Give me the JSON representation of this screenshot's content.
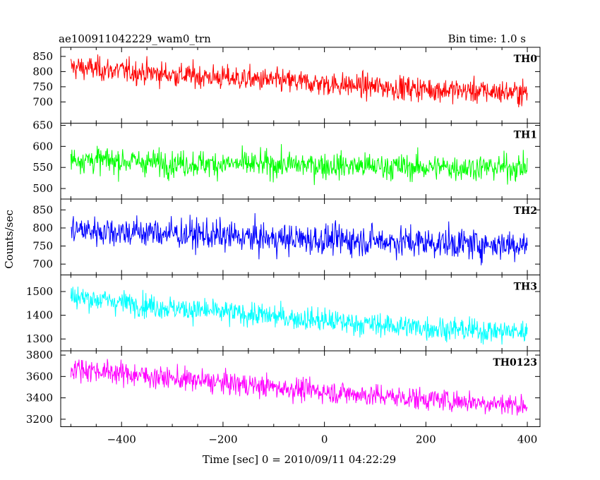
{
  "header": {
    "left_title": "ae100911042229_wam0_trn",
    "right_title": "Bin time: 1.0 s"
  },
  "chart_data": {
    "type": "line",
    "title": "ae100911042229_wam0_trn",
    "subtitle": "Bin time: 1.0 s",
    "xlabel": "Time [sec] 0 = 2010/09/11 04:22:29",
    "ylabel": "Counts/sec",
    "xlim": [
      -520,
      425
    ],
    "x_range": [
      -500,
      400
    ],
    "x_ticks": [
      -400,
      -200,
      0,
      200,
      400
    ],
    "x_tick_labels": [
      "−400",
      "−200",
      "0",
      "200",
      "400"
    ],
    "grid": false,
    "panels": [
      {
        "name": "TH0",
        "color": "#ff0000",
        "ylim": [
          630,
          880
        ],
        "y_ticks": [
          700,
          750,
          800,
          850
        ],
        "trend": [
          [
            -500,
            815
          ],
          [
            -300,
            790
          ],
          [
            -100,
            770
          ],
          [
            100,
            750
          ],
          [
            300,
            735
          ],
          [
            400,
            730
          ]
        ],
        "noise_sd": 28
      },
      {
        "name": "TH1",
        "color": "#00ff00",
        "ylim": [
          475,
          655
        ],
        "y_ticks": [
          500,
          550,
          600,
          650
        ],
        "trend": [
          [
            -500,
            570
          ],
          [
            -300,
            560
          ],
          [
            0,
            555
          ],
          [
            200,
            550
          ],
          [
            400,
            550
          ]
        ],
        "noise_sd": 22
      },
      {
        "name": "TH2",
        "color": "#0000ff",
        "ylim": [
          670,
          880
        ],
        "y_ticks": [
          700,
          750,
          800,
          850
        ],
        "trend": [
          [
            -500,
            795
          ],
          [
            -300,
            785
          ],
          [
            -100,
            770
          ],
          [
            100,
            765
          ],
          [
            300,
            755
          ],
          [
            400,
            755
          ]
        ],
        "noise_sd": 30
      },
      {
        "name": "TH3",
        "color": "#00ffff",
        "ylim": [
          1250,
          1570
        ],
        "y_ticks": [
          1300,
          1400,
          1500
        ],
        "trend": [
          [
            -500,
            1480
          ],
          [
            -300,
            1430
          ],
          [
            -100,
            1395
          ],
          [
            100,
            1360
          ],
          [
            300,
            1335
          ],
          [
            400,
            1330
          ]
        ],
        "noise_sd": 35
      },
      {
        "name": "TH0123",
        "color": "#ff00ff",
        "ylim": [
          3130,
          3840
        ],
        "y_ticks": [
          3200,
          3400,
          3600,
          3800
        ],
        "trend": [
          [
            -500,
            3680
          ],
          [
            -300,
            3580
          ],
          [
            -100,
            3500
          ],
          [
            100,
            3420
          ],
          [
            300,
            3360
          ],
          [
            400,
            3330
          ]
        ],
        "noise_sd": 75
      }
    ]
  }
}
